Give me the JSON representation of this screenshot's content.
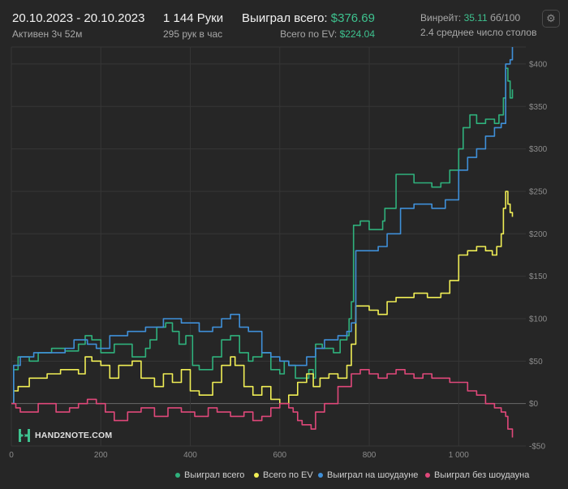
{
  "header": {
    "date_range": "20.10.2023 - 20.10.2023",
    "active_time": "Активен 3ч 52м",
    "hands": "1 144 Руки",
    "hands_per_hour": "295 рук в час",
    "won_total_label": "Выиграл всего:",
    "won_total_value": "$376.69",
    "ev_total_label": "Всего по EV:",
    "ev_total_value": "$224.04",
    "winrate_label": "Винрейт:",
    "winrate_value": "35.11",
    "winrate_unit": "бб/100",
    "avg_tables": "2.4 среднее число столов"
  },
  "settings_icon": "gear-icon",
  "logo": {
    "text": "HAND2NOTE.COM",
    "icon": "h2n-logo-icon"
  },
  "colors": {
    "background": "#262626",
    "grid": "#363636",
    "won_total": "#2fb17c",
    "ev": "#f0ee55",
    "showdown": "#3f8fd8",
    "non_showdown": "#e0487a"
  },
  "legend": [
    {
      "label": "Выиграл всего",
      "color": "#2fb17c"
    },
    {
      "label": "Всего по EV",
      "color": "#f0ee55"
    },
    {
      "label": "Выиграл на шоудауне",
      "color": "#3f8fd8"
    },
    {
      "label": "Выиграл без шоудауна",
      "color": "#e0487a"
    }
  ],
  "chart_data": {
    "type": "line",
    "xlabel": "",
    "ylabel": "",
    "xlim": [
      0,
      1150
    ],
    "ylim": [
      -50,
      420
    ],
    "x_ticks": [
      0,
      200,
      400,
      600,
      800,
      1000
    ],
    "x_tick_labels": [
      "0",
      "200",
      "400",
      "600",
      "800",
      "1 000"
    ],
    "y_ticks": [
      -50,
      0,
      50,
      100,
      150,
      200,
      250,
      300,
      350,
      400
    ],
    "y_tick_labels": [
      "-$50",
      "$0",
      "$50",
      "$100",
      "$150",
      "$200",
      "$250",
      "$300",
      "$350",
      "$400"
    ],
    "grid": true,
    "legend_position": "bottom-right",
    "series": [
      {
        "name": "Выиграл всего",
        "color": "#2fb17c",
        "points": [
          [
            0,
            0
          ],
          [
            5,
            40
          ],
          [
            15,
            55
          ],
          [
            40,
            50
          ],
          [
            60,
            60
          ],
          [
            90,
            65
          ],
          [
            120,
            62
          ],
          [
            150,
            70
          ],
          [
            165,
            80
          ],
          [
            180,
            75
          ],
          [
            200,
            60
          ],
          [
            230,
            70
          ],
          [
            270,
            55
          ],
          [
            300,
            65
          ],
          [
            310,
            75
          ],
          [
            325,
            90
          ],
          [
            345,
            95
          ],
          [
            360,
            85
          ],
          [
            375,
            70
          ],
          [
            390,
            80
          ],
          [
            405,
            45
          ],
          [
            420,
            40
          ],
          [
            450,
            55
          ],
          [
            470,
            75
          ],
          [
            490,
            80
          ],
          [
            510,
            60
          ],
          [
            530,
            50
          ],
          [
            540,
            55
          ],
          [
            560,
            60
          ],
          [
            580,
            40
          ],
          [
            600,
            35
          ],
          [
            610,
            50
          ],
          [
            620,
            45
          ],
          [
            635,
            30
          ],
          [
            650,
            30
          ],
          [
            665,
            40
          ],
          [
            675,
            30
          ],
          [
            680,
            70
          ],
          [
            695,
            65
          ],
          [
            720,
            60
          ],
          [
            735,
            75
          ],
          [
            750,
            80
          ],
          [
            755,
            100
          ],
          [
            760,
            120
          ],
          [
            765,
            210
          ],
          [
            780,
            215
          ],
          [
            800,
            205
          ],
          [
            820,
            205
          ],
          [
            830,
            215
          ],
          [
            835,
            230
          ],
          [
            860,
            270
          ],
          [
            900,
            260
          ],
          [
            940,
            255
          ],
          [
            960,
            260
          ],
          [
            980,
            275
          ],
          [
            1000,
            300
          ],
          [
            1010,
            325
          ],
          [
            1025,
            340
          ],
          [
            1040,
            330
          ],
          [
            1060,
            335
          ],
          [
            1080,
            330
          ],
          [
            1090,
            340
          ],
          [
            1100,
            360
          ],
          [
            1105,
            395
          ],
          [
            1110,
            380
          ],
          [
            1115,
            360
          ],
          [
            1120,
            370
          ]
        ]
      },
      {
        "name": "Всего по EV",
        "color": "#f0ee55",
        "points": [
          [
            0,
            0
          ],
          [
            5,
            15
          ],
          [
            15,
            20
          ],
          [
            40,
            30
          ],
          [
            80,
            35
          ],
          [
            110,
            40
          ],
          [
            130,
            40
          ],
          [
            150,
            35
          ],
          [
            165,
            55
          ],
          [
            180,
            50
          ],
          [
            200,
            45
          ],
          [
            220,
            30
          ],
          [
            240,
            45
          ],
          [
            270,
            50
          ],
          [
            290,
            30
          ],
          [
            320,
            20
          ],
          [
            340,
            35
          ],
          [
            360,
            25
          ],
          [
            380,
            40
          ],
          [
            400,
            15
          ],
          [
            420,
            10
          ],
          [
            450,
            25
          ],
          [
            470,
            45
          ],
          [
            490,
            55
          ],
          [
            500,
            45
          ],
          [
            520,
            20
          ],
          [
            540,
            10
          ],
          [
            560,
            20
          ],
          [
            580,
            5
          ],
          [
            600,
            0
          ],
          [
            620,
            10
          ],
          [
            640,
            25
          ],
          [
            660,
            35
          ],
          [
            675,
            20
          ],
          [
            690,
            30
          ],
          [
            710,
            35
          ],
          [
            730,
            30
          ],
          [
            750,
            45
          ],
          [
            760,
            70
          ],
          [
            770,
            115
          ],
          [
            800,
            110
          ],
          [
            820,
            105
          ],
          [
            840,
            120
          ],
          [
            860,
            125
          ],
          [
            900,
            130
          ],
          [
            930,
            125
          ],
          [
            960,
            130
          ],
          [
            980,
            145
          ],
          [
            1000,
            175
          ],
          [
            1020,
            180
          ],
          [
            1040,
            185
          ],
          [
            1060,
            180
          ],
          [
            1075,
            175
          ],
          [
            1085,
            185
          ],
          [
            1095,
            200
          ],
          [
            1100,
            230
          ],
          [
            1105,
            250
          ],
          [
            1110,
            235
          ],
          [
            1115,
            225
          ],
          [
            1120,
            220
          ]
        ]
      },
      {
        "name": "Выиграл на шоудауне",
        "color": "#3f8fd8",
        "points": [
          [
            0,
            0
          ],
          [
            5,
            45
          ],
          [
            20,
            55
          ],
          [
            50,
            60
          ],
          [
            80,
            60
          ],
          [
            120,
            65
          ],
          [
            140,
            75
          ],
          [
            170,
            70
          ],
          [
            190,
            65
          ],
          [
            220,
            80
          ],
          [
            260,
            85
          ],
          [
            300,
            90
          ],
          [
            340,
            100
          ],
          [
            380,
            95
          ],
          [
            420,
            85
          ],
          [
            450,
            90
          ],
          [
            470,
            100
          ],
          [
            490,
            105
          ],
          [
            510,
            90
          ],
          [
            530,
            85
          ],
          [
            560,
            60
          ],
          [
            580,
            55
          ],
          [
            600,
            50
          ],
          [
            620,
            45
          ],
          [
            640,
            45
          ],
          [
            660,
            55
          ],
          [
            680,
            65
          ],
          [
            700,
            75
          ],
          [
            730,
            80
          ],
          [
            750,
            85
          ],
          [
            760,
            95
          ],
          [
            770,
            180
          ],
          [
            800,
            180
          ],
          [
            820,
            185
          ],
          [
            840,
            200
          ],
          [
            870,
            230
          ],
          [
            900,
            235
          ],
          [
            940,
            230
          ],
          [
            970,
            240
          ],
          [
            1000,
            275
          ],
          [
            1020,
            290
          ],
          [
            1040,
            300
          ],
          [
            1060,
            315
          ],
          [
            1080,
            325
          ],
          [
            1095,
            330
          ],
          [
            1105,
            400
          ],
          [
            1115,
            405
          ],
          [
            1120,
            420
          ]
        ]
      },
      {
        "name": "Выиграл без шоудауна",
        "color": "#e0487a",
        "points": [
          [
            0,
            0
          ],
          [
            10,
            -5
          ],
          [
            20,
            -10
          ],
          [
            40,
            -10
          ],
          [
            60,
            0
          ],
          [
            80,
            0
          ],
          [
            100,
            -10
          ],
          [
            130,
            -5
          ],
          [
            150,
            0
          ],
          [
            170,
            5
          ],
          [
            190,
            0
          ],
          [
            210,
            -10
          ],
          [
            230,
            -20
          ],
          [
            260,
            -10
          ],
          [
            290,
            -5
          ],
          [
            320,
            -15
          ],
          [
            350,
            -5
          ],
          [
            380,
            -10
          ],
          [
            410,
            -15
          ],
          [
            440,
            -5
          ],
          [
            460,
            -10
          ],
          [
            490,
            -15
          ],
          [
            520,
            -10
          ],
          [
            540,
            -20
          ],
          [
            560,
            -15
          ],
          [
            580,
            -5
          ],
          [
            600,
            0
          ],
          [
            620,
            -5
          ],
          [
            630,
            -10
          ],
          [
            640,
            -20
          ],
          [
            650,
            -25
          ],
          [
            670,
            -30
          ],
          [
            680,
            -10
          ],
          [
            700,
            0
          ],
          [
            730,
            20
          ],
          [
            760,
            35
          ],
          [
            780,
            40
          ],
          [
            800,
            35
          ],
          [
            820,
            30
          ],
          [
            840,
            35
          ],
          [
            860,
            40
          ],
          [
            880,
            35
          ],
          [
            900,
            30
          ],
          [
            920,
            35
          ],
          [
            940,
            30
          ],
          [
            960,
            30
          ],
          [
            980,
            25
          ],
          [
            1000,
            25
          ],
          [
            1020,
            15
          ],
          [
            1040,
            10
          ],
          [
            1060,
            0
          ],
          [
            1080,
            -5
          ],
          [
            1095,
            -10
          ],
          [
            1100,
            -10
          ],
          [
            1105,
            -15
          ],
          [
            1110,
            -30
          ],
          [
            1120,
            -40
          ]
        ]
      }
    ]
  }
}
